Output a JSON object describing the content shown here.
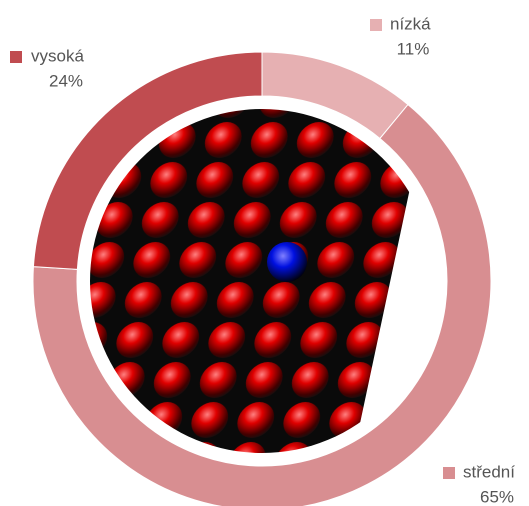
{
  "chart_data": {
    "type": "donut",
    "categories": [
      "nízká",
      "střední",
      "vysoká"
    ],
    "values": [
      11,
      65,
      24
    ],
    "value_labels": [
      "11%",
      "65%",
      "24%"
    ],
    "colors": [
      "#e6b0b2",
      "#d88e91",
      "#c04c50"
    ]
  }
}
